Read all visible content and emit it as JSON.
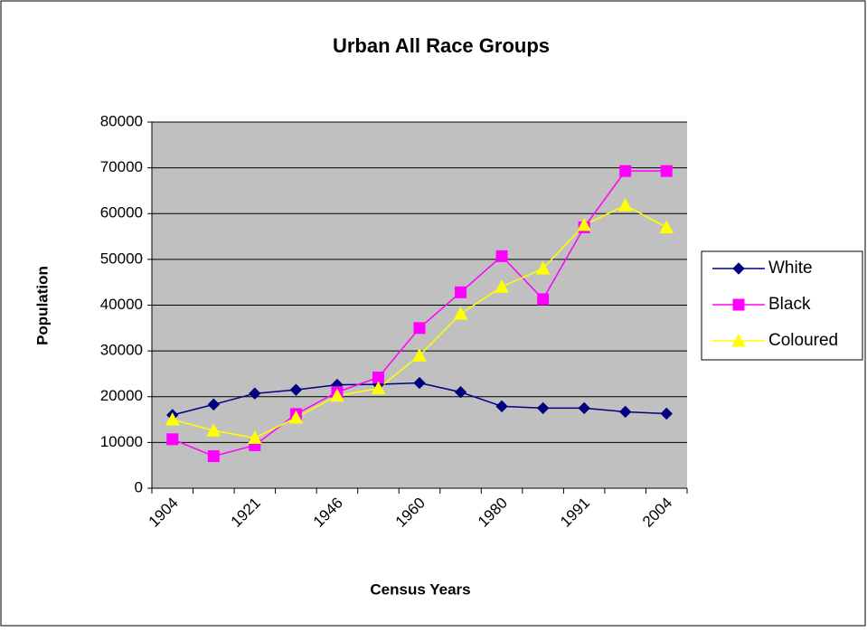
{
  "chart_data": {
    "type": "line",
    "title": "Urban All Race Groups",
    "x_label": "Census Years",
    "y_label": "Population",
    "categories": [
      "1904",
      null,
      "1921",
      null,
      "1946",
      null,
      "1960",
      null,
      "1980",
      null,
      "1991",
      null,
      "2004"
    ],
    "series": [
      {
        "name": "White",
        "color": "#000080",
        "marker": "diamond",
        "values": [
          16000,
          18300,
          20700,
          21500,
          22600,
          22700,
          23000,
          21000,
          17900,
          17500,
          17500,
          16700,
          16300
        ]
      },
      {
        "name": "Black",
        "color": "#ff00ff",
        "marker": "square",
        "values": [
          10700,
          7000,
          9400,
          16200,
          21000,
          24200,
          35000,
          42800,
          50700,
          41300,
          57000,
          69300,
          69300
        ]
      },
      {
        "name": "Coloured",
        "color": "#ffff00",
        "marker": "triangle",
        "values": [
          15000,
          12600,
          11000,
          15400,
          20200,
          21800,
          29000,
          38100,
          44000,
          48000,
          57500,
          61800,
          57000
        ]
      }
    ],
    "ylim": [
      0,
      80000
    ],
    "yticks": [
      0,
      10000,
      20000,
      30000,
      40000,
      50000,
      60000,
      70000,
      80000
    ],
    "grid": true,
    "legend": "right"
  }
}
